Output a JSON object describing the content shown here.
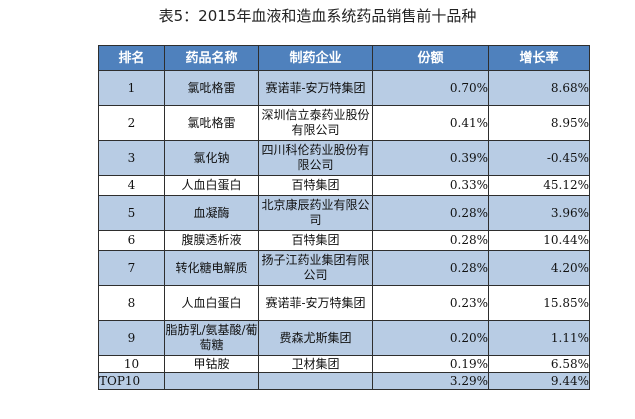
{
  "title": "表5：2015年血液和造血系统药品销售前十品种",
  "table": {
    "headers": [
      "排名",
      "药品名称",
      "制药企业",
      "份额",
      "增长率"
    ],
    "rows": [
      {
        "rank": "1",
        "drug": "氯吡格雷",
        "company": "赛诺菲-安万特集团",
        "share": "0.70%",
        "growth": "8.68%"
      },
      {
        "rank": "2",
        "drug": "氯吡格雷",
        "company": "深圳信立泰药业股份有限公司",
        "share": "0.41%",
        "growth": "8.95%"
      },
      {
        "rank": "3",
        "drug": "氯化钠",
        "company": "四川科伦药业股份有限公司",
        "share": "0.39%",
        "growth": "-0.45%"
      },
      {
        "rank": "4",
        "drug": "人血白蛋白",
        "company": "百特集团",
        "share": "0.33%",
        "growth": "45.12%"
      },
      {
        "rank": "5",
        "drug": "血凝酶",
        "company": "北京康辰药业有限公司",
        "share": "0.28%",
        "growth": "3.96%"
      },
      {
        "rank": "6",
        "drug": "腹膜透析液",
        "company": "百特集团",
        "share": "0.28%",
        "growth": "10.44%"
      },
      {
        "rank": "7",
        "drug": "转化糖电解质",
        "company": "扬子江药业集团有限公司",
        "share": "0.28%",
        "growth": "4.20%"
      },
      {
        "rank": "8",
        "drug": "人血白蛋白",
        "company": "赛诺菲-安万特集团",
        "share": "0.23%",
        "growth": "15.85%"
      },
      {
        "rank": "9",
        "drug": "脂肪乳/氨基酸/葡萄糖",
        "company": "费森尤斯集团",
        "share": "0.20%",
        "growth": "1.11%"
      },
      {
        "rank": "10",
        "drug": "甲钴胺",
        "company": "卫材集团",
        "share": "0.19%",
        "growth": "6.58%"
      },
      {
        "rank": "TOP10",
        "drug": "",
        "company": "",
        "share": "3.29%",
        "growth": "9.44%"
      }
    ]
  }
}
